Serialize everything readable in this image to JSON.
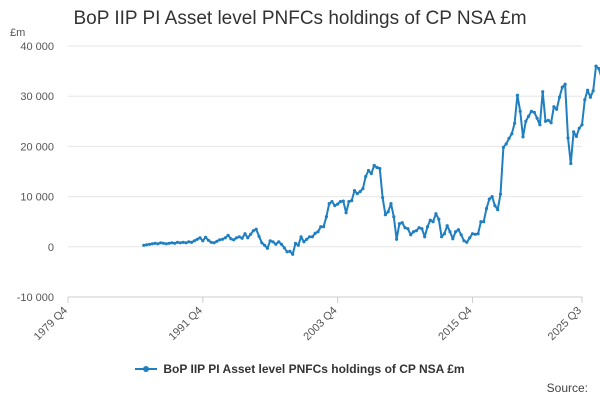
{
  "colors": {
    "series": "#1f7fc1",
    "grid": "#e6e6e6",
    "axis": "#cccccc",
    "text": "#555555"
  },
  "footer": {
    "source": "Source:"
  },
  "chart_data": {
    "type": "line",
    "title": "BoP IIP PI Asset level PNFCs holdings of CP NSA £m",
    "unit": "£m",
    "ylim": [
      -10000,
      40000
    ],
    "yticks": [
      -10000,
      0,
      10000,
      20000,
      30000,
      40000
    ],
    "ytick_labels": [
      "-10 000",
      "0",
      "10 000",
      "20 000",
      "30 000",
      "40 000"
    ],
    "xlim": [
      0,
      183
    ],
    "xticks": [
      0,
      48,
      96,
      144,
      183
    ],
    "xtick_labels": [
      "1979 Q4",
      "1991 Q4",
      "2003 Q4",
      "2015 Q4",
      "2025 Q3"
    ],
    "series": [
      {
        "name": "BoP IIP PI Asset level PNFCs holdings of CP NSA £m",
        "values": [
          300,
          400,
          500,
          600,
          700,
          600,
          800,
          700,
          600,
          700,
          800,
          700,
          900,
          800,
          900,
          800,
          1000,
          900,
          1200,
          1500,
          1800,
          1200,
          1900,
          1300,
          900,
          800,
          1100,
          1400,
          1500,
          1800,
          2300,
          1600,
          1400,
          1800,
          2000,
          1700,
          2600,
          1800,
          2500,
          3200,
          3500,
          2100,
          800,
          300,
          -300,
          1200,
          1000,
          500,
          1000,
          500,
          -200,
          -1000,
          -900,
          -1500,
          700,
          300,
          2000,
          1000,
          1500,
          2000,
          2000,
          2700,
          3000,
          4000,
          4000,
          6000,
          8600,
          9000,
          8200,
          8500,
          9000,
          9100,
          6800,
          9000,
          9200,
          11200,
          10600,
          11000,
          11600,
          14000,
          15200,
          14600,
          16200,
          15800,
          15600,
          9800,
          6400,
          7000,
          8600,
          6000,
          1500,
          4600,
          4800,
          3800,
          3600,
          2400,
          3000,
          3200,
          3800,
          3600,
          2000,
          4000,
          5300,
          5000,
          6600,
          5500,
          2000,
          2600,
          4200,
          3000,
          1600,
          3000,
          3400,
          2400,
          1200,
          900,
          1800,
          2600,
          2500,
          2600,
          5000,
          5000,
          7600,
          9500,
          10000,
          8200,
          7400,
          10500,
          19800,
          20500,
          21600,
          22500,
          24600,
          30200,
          27000,
          21900,
          25000,
          26000,
          27000,
          26800,
          25600,
          24300,
          30900,
          25000,
          25200,
          24700,
          27900,
          27400,
          29800,
          31800,
          32400,
          21700,
          16600,
          22900,
          22000,
          23600,
          24300,
          29300,
          31200,
          29800,
          31100,
          36000,
          35500,
          33500,
          35800
        ],
        "first_x": 27
      }
    ]
  }
}
